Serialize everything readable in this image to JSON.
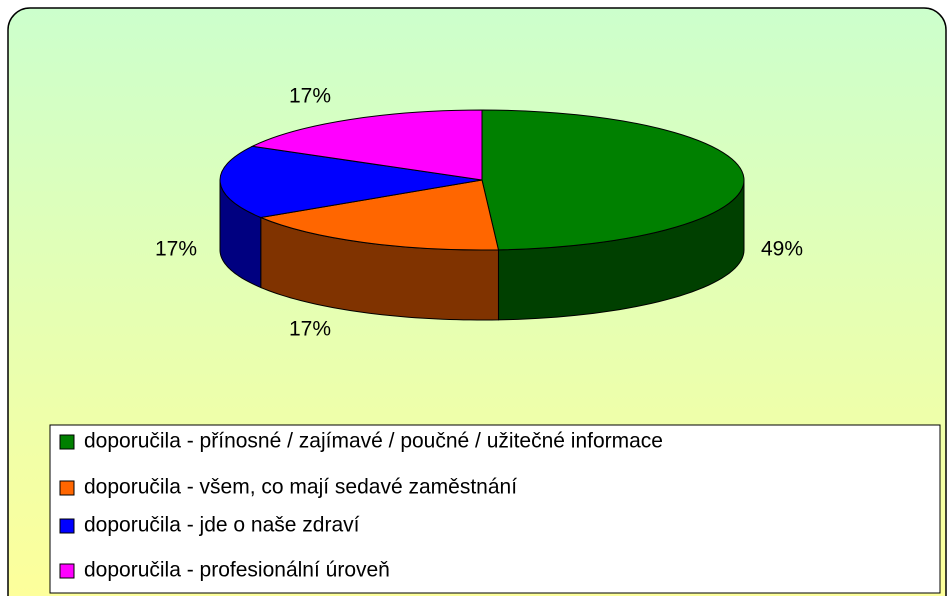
{
  "chart_data": {
    "type": "pie",
    "categories": [
      "doporučila - přínosné / zajímavé / poučné / užitečné informace",
      "doporučila - všem, co mají sedavé zaměstnání",
      "doporučila - jde o naše zdraví",
      "doporučila - profesionální úroveň"
    ],
    "values": [
      49,
      17,
      17,
      17
    ],
    "value_labels": [
      "49%",
      "17%",
      "17%",
      "17%"
    ],
    "colors": [
      "#008000",
      "#ff6600",
      "#0000ff",
      "#ff00ff"
    ],
    "legend": "bottom"
  }
}
